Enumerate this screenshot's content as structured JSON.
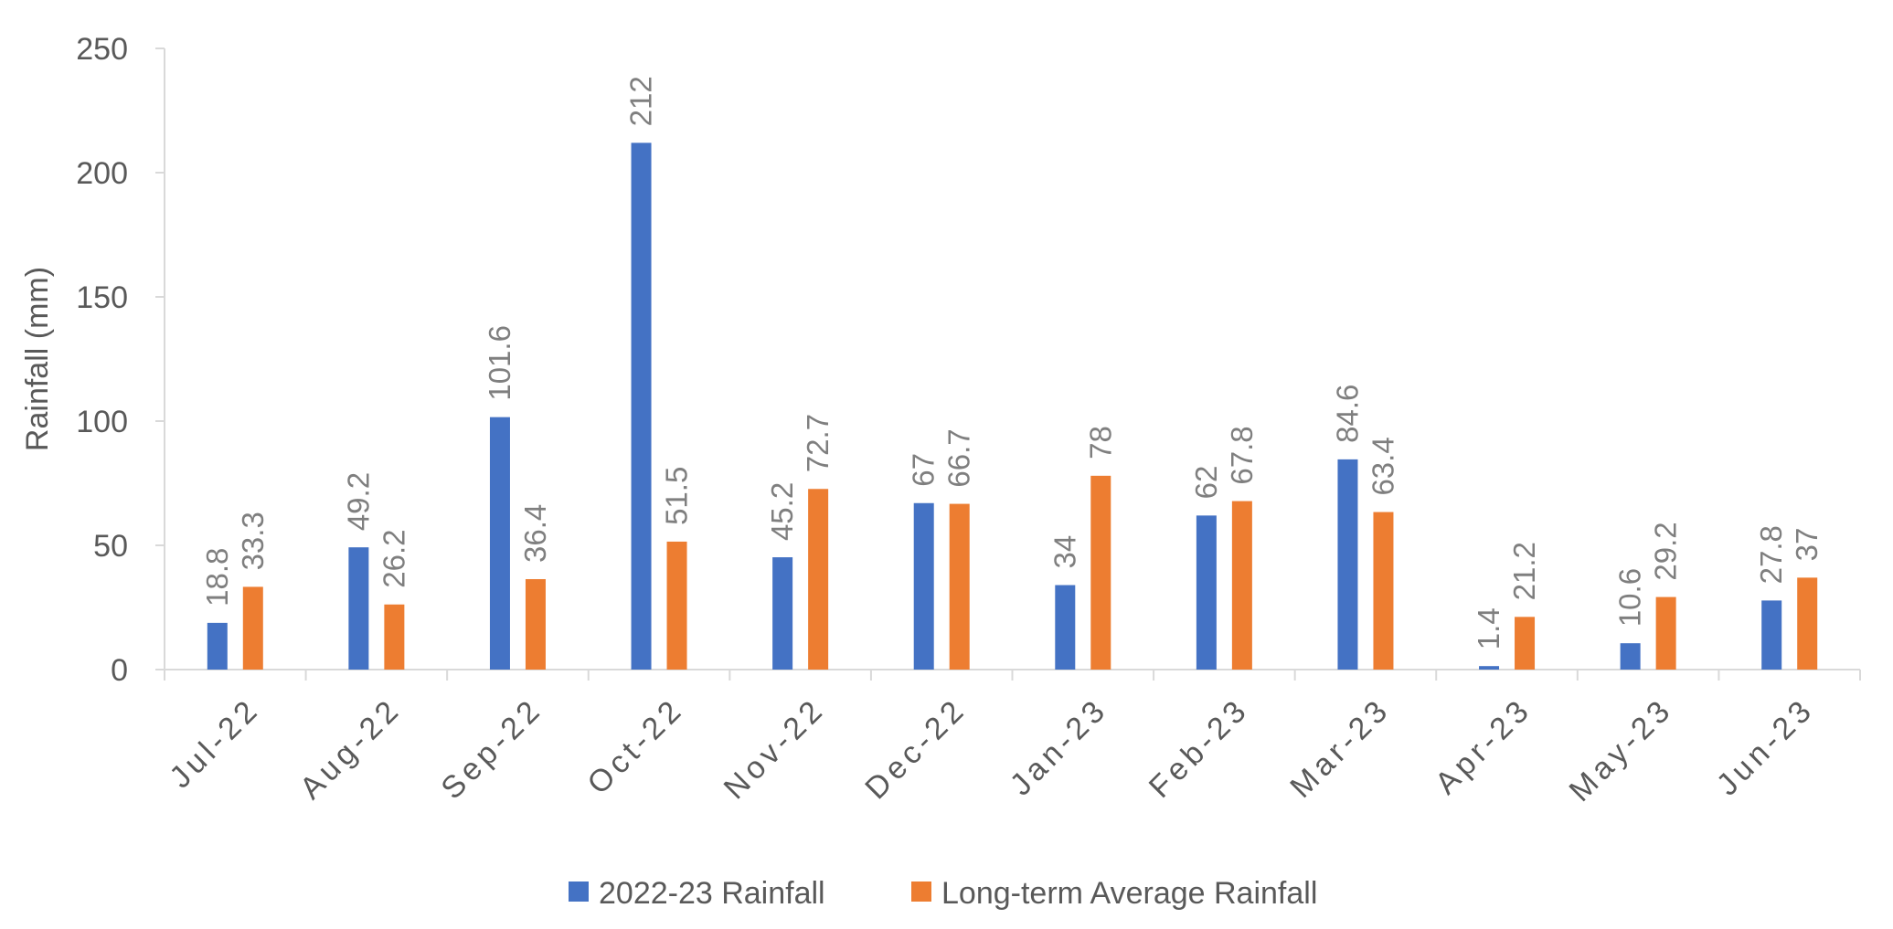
{
  "chart_data": {
    "type": "bar",
    "categories": [
      "Jul-22",
      "Aug-22",
      "Sep-22",
      "Oct-22",
      "Nov-22",
      "Dec-22",
      "Jan-23",
      "Feb-23",
      "Mar-23",
      "Apr-23",
      "May-23",
      "Jun-23"
    ],
    "series": [
      {
        "name": "2022-23 Rainfall",
        "color": "#4472C4",
        "values": [
          18.8,
          49.2,
          101.6,
          212,
          45.2,
          67,
          34,
          62,
          84.6,
          1.4,
          10.6,
          27.8
        ]
      },
      {
        "name": "Long-term Average Rainfall",
        "color": "#ED7D31",
        "values": [
          33.3,
          26.2,
          36.4,
          51.5,
          72.7,
          66.7,
          78,
          67.8,
          63.4,
          21.2,
          29.2,
          37
        ]
      }
    ],
    "title": "",
    "xlabel": "",
    "ylabel": "Rainfall (mm)",
    "ylim": [
      0,
      250
    ],
    "yticks": [
      "0",
      "50",
      "100",
      "150",
      "200",
      "250"
    ],
    "grid": false,
    "legend": "bottom",
    "data_labels": true
  }
}
